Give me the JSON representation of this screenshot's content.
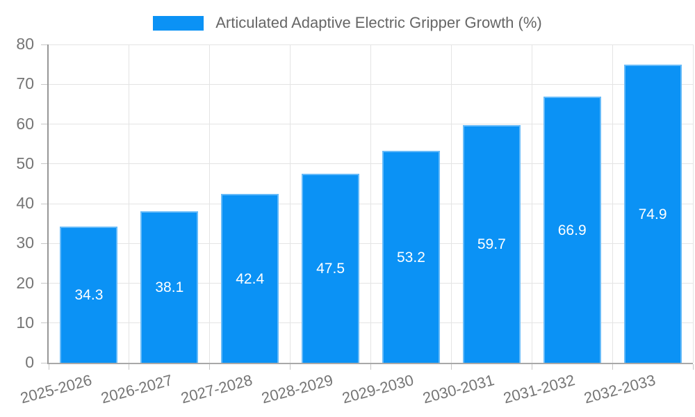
{
  "chart_data": {
    "type": "bar",
    "title": "",
    "legend": {
      "label": "Articulated Adaptive Electric Gripper Growth (%)",
      "position": "top-center"
    },
    "categories": [
      "2025-2026",
      "2026-2027",
      "2027-2028",
      "2028-2029",
      "2029-2030",
      "2030-2031",
      "2031-2032",
      "2032-2033"
    ],
    "series": [
      {
        "name": "Articulated Adaptive Electric Gripper Growth (%)",
        "values": [
          34.3,
          38.1,
          42.4,
          47.5,
          53.2,
          59.7,
          66.9,
          74.9
        ]
      }
    ],
    "value_labels": [
      "34.3",
      "38.1",
      "42.4",
      "47.5",
      "53.2",
      "59.7",
      "66.9",
      "74.9"
    ],
    "xlabel": "",
    "ylabel": "",
    "ylim": [
      0,
      80
    ],
    "yticks": [
      0,
      10,
      20,
      30,
      40,
      50,
      60,
      70,
      80
    ],
    "grid": true,
    "x_tick_label_rotation_deg": 15
  },
  "colors": {
    "bar_fill": "#0b92f5",
    "bar_edge_highlight": "rgba(255,255,255,0.38)",
    "grid_line": "#e4e4e4",
    "axis_line": "#9b9b9b",
    "tick_mark": "#c6c6c6",
    "tick_label": "#757575",
    "legend_text": "#666666",
    "value_label_text": "#ffffff",
    "background": "#ffffff"
  }
}
